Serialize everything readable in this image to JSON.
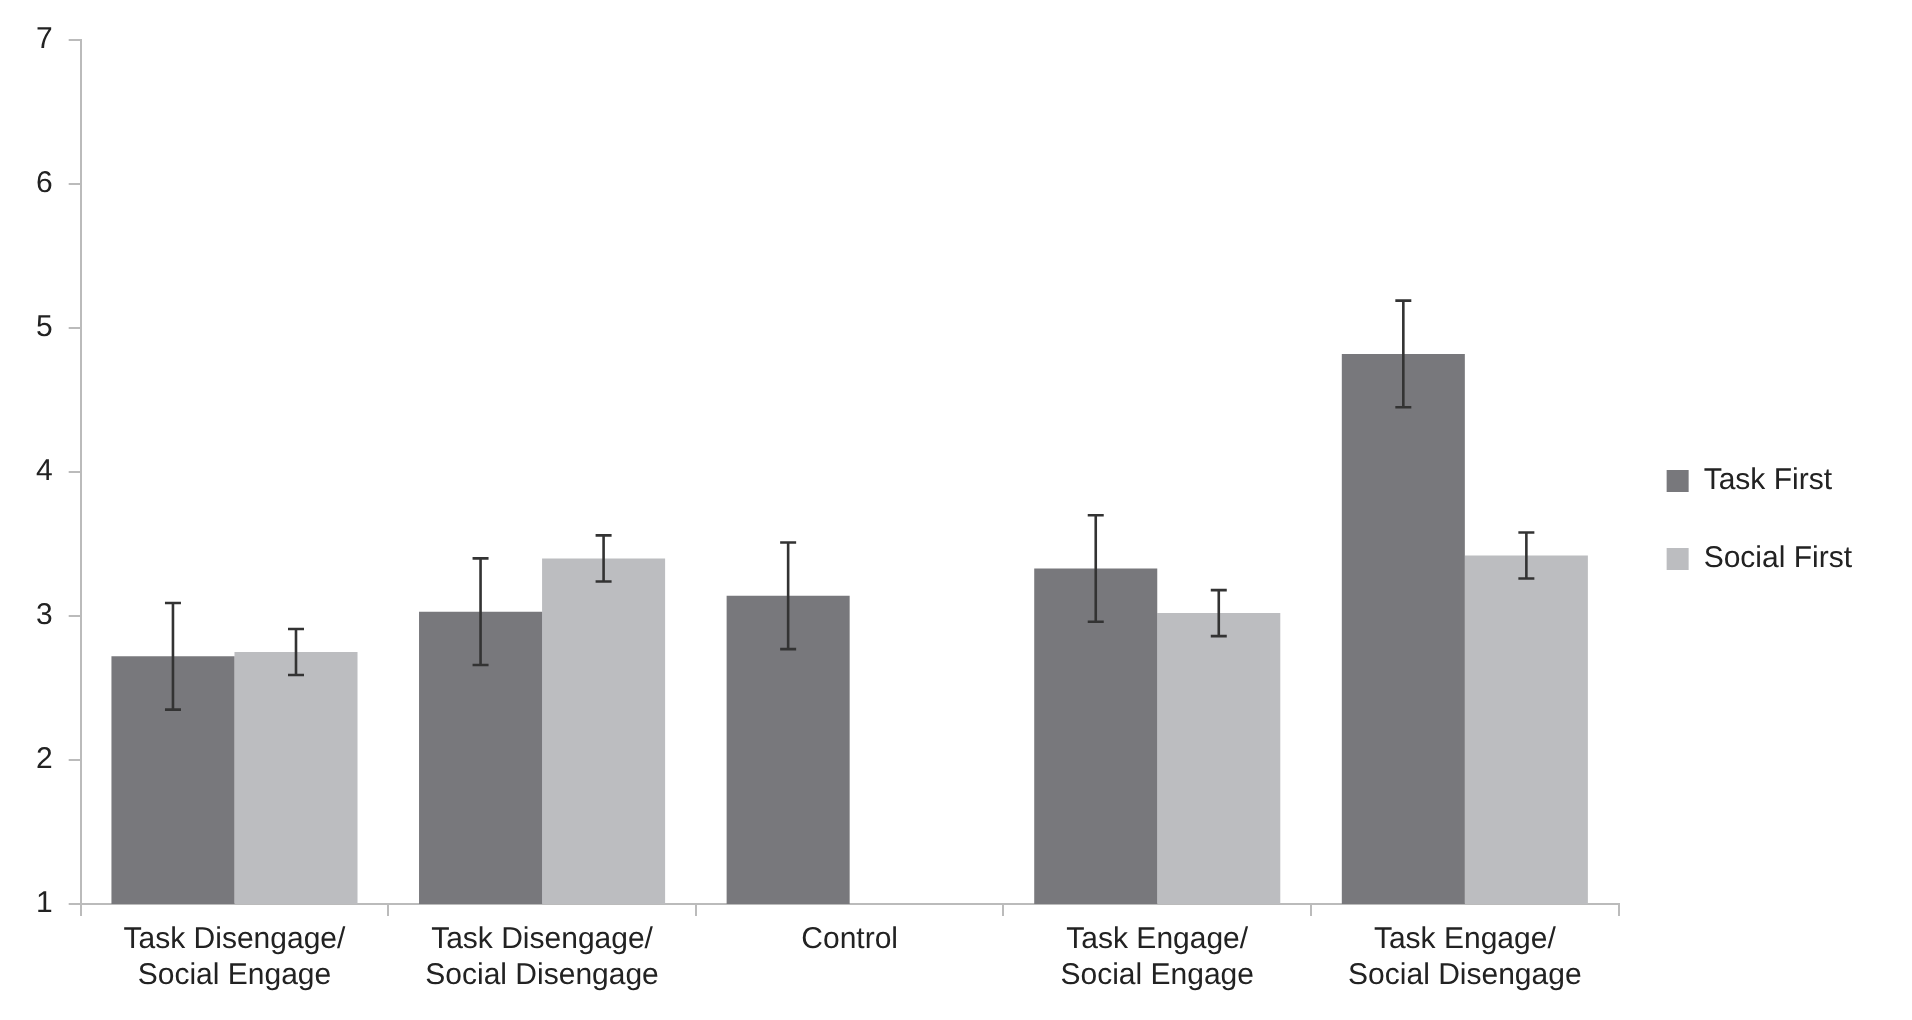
{
  "chart_data": {
    "type": "bar",
    "categories": [
      "Task Disengage/\nSocial Engage",
      "Task Disengage/\nSocial Disengage",
      "Control",
      "Task Engage/\nSocial Engage",
      "Task Engage/\nSocial Disengage"
    ],
    "series": [
      {
        "name": "Task First",
        "color": "#78787c",
        "values": [
          2.72,
          3.03,
          3.14,
          3.33,
          4.82
        ],
        "errors": [
          0.37,
          0.37,
          0.37,
          0.37,
          0.37
        ]
      },
      {
        "name": "Social First",
        "color": "#bcbdc0",
        "values": [
          2.75,
          3.4,
          null,
          3.02,
          3.42
        ],
        "errors": [
          0.16,
          0.16,
          null,
          0.16,
          0.16
        ]
      }
    ],
    "ylim": [
      1,
      7
    ],
    "yticks": [
      1,
      2,
      3,
      4,
      5,
      6,
      7
    ],
    "grid": false,
    "legend": "right"
  }
}
